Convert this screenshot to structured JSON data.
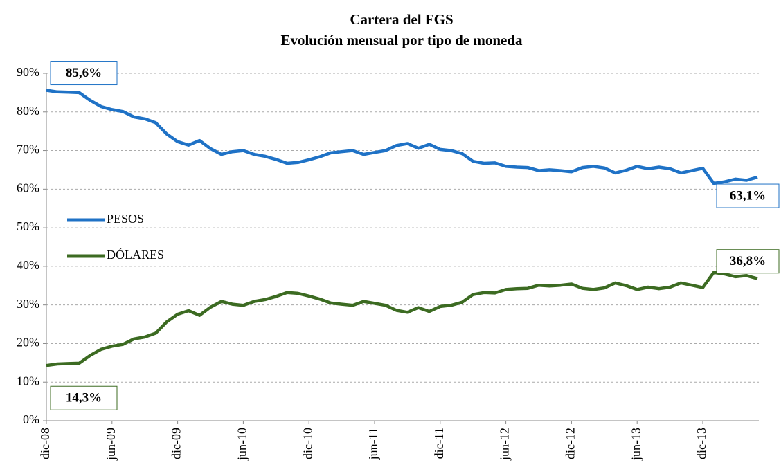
{
  "chart_data": {
    "type": "line",
    "title": "Cartera del FGS",
    "subtitle": "Evolución mensual por tipo de moneda",
    "categories": [
      "dic-08",
      null,
      null,
      null,
      null,
      null,
      "jun-09",
      null,
      null,
      null,
      null,
      null,
      "dic-09",
      null,
      null,
      null,
      null,
      null,
      "jun-10",
      null,
      null,
      null,
      null,
      null,
      "dic-10",
      null,
      null,
      null,
      null,
      null,
      "jun-11",
      null,
      null,
      null,
      null,
      null,
      "dic-11",
      null,
      null,
      null,
      null,
      null,
      "jun-12",
      null,
      null,
      null,
      null,
      null,
      "dic-12",
      null,
      null,
      null,
      null,
      null,
      "jun-13",
      null,
      null,
      null,
      null,
      null,
      "dic-13",
      null,
      null,
      null,
      null,
      null
    ],
    "series": [
      {
        "name": "PESOS",
        "color": "#1f72c6",
        "values": [
          85.6,
          85.2,
          85.1,
          85.0,
          83.0,
          81.4,
          80.6,
          80.1,
          78.7,
          78.2,
          77.2,
          74.3,
          72.3,
          71.4,
          72.6,
          70.5,
          69.0,
          69.7,
          70.0,
          69.0,
          68.5,
          67.7,
          66.7,
          66.9,
          67.6,
          68.4,
          69.4,
          69.7,
          70.0,
          69.0,
          69.5,
          70.0,
          71.3,
          71.8,
          70.6,
          71.6,
          70.3,
          70.0,
          69.2,
          67.2,
          66.7,
          66.8,
          65.9,
          65.7,
          65.6,
          64.8,
          65.0,
          64.8,
          64.5,
          65.6,
          65.9,
          65.5,
          64.2,
          64.9,
          65.9,
          65.3,
          65.7,
          65.3,
          64.2,
          64.8,
          65.4,
          61.5,
          61.9,
          62.6,
          62.3,
          63.1
        ],
        "value_labels": [
          "85,6%",
          null,
          null,
          null,
          null,
          null,
          null,
          null,
          null,
          null,
          null,
          null,
          null,
          null,
          null,
          null,
          null,
          null,
          null,
          null,
          null,
          null,
          null,
          null,
          null,
          null,
          null,
          null,
          null,
          null,
          null,
          null,
          null,
          null,
          null,
          null,
          null,
          null,
          null,
          null,
          null,
          null,
          null,
          null,
          null,
          null,
          null,
          null,
          null,
          null,
          null,
          null,
          null,
          null,
          null,
          null,
          null,
          null,
          null,
          null,
          null,
          null,
          null,
          null,
          null,
          "63,1%"
        ]
      },
      {
        "name": "DÓLARES",
        "color": "#3c6b22",
        "values": [
          14.3,
          14.7,
          14.8,
          14.9,
          16.9,
          18.5,
          19.3,
          19.8,
          21.2,
          21.7,
          22.7,
          25.6,
          27.6,
          28.5,
          27.3,
          29.4,
          30.9,
          30.2,
          29.9,
          30.9,
          31.4,
          32.2,
          33.2,
          33.0,
          32.3,
          31.5,
          30.5,
          30.2,
          29.9,
          30.9,
          30.4,
          29.9,
          28.6,
          28.1,
          29.3,
          28.3,
          29.6,
          29.9,
          30.7,
          32.7,
          33.2,
          33.1,
          34.0,
          34.2,
          34.3,
          35.1,
          34.9,
          35.1,
          35.4,
          34.3,
          34.0,
          34.4,
          35.7,
          35.0,
          34.0,
          34.6,
          34.2,
          34.6,
          35.7,
          35.1,
          34.5,
          38.4,
          38.0,
          37.3,
          37.6,
          36.8
        ],
        "value_labels": [
          "14,3%",
          null,
          null,
          null,
          null,
          null,
          null,
          null,
          null,
          null,
          null,
          null,
          null,
          null,
          null,
          null,
          null,
          null,
          null,
          null,
          null,
          null,
          null,
          null,
          null,
          null,
          null,
          null,
          null,
          null,
          null,
          null,
          null,
          null,
          null,
          null,
          null,
          null,
          null,
          null,
          null,
          null,
          null,
          null,
          null,
          null,
          null,
          null,
          null,
          null,
          null,
          null,
          null,
          null,
          null,
          null,
          null,
          null,
          null,
          null,
          null,
          null,
          null,
          null,
          null,
          "36,8%"
        ]
      }
    ],
    "ylim": [
      0,
      90
    ],
    "yticks": [
      {
        "value": 0,
        "label": "0%"
      },
      {
        "value": 10,
        "label": "10%"
      },
      {
        "value": 20,
        "label": "20%"
      },
      {
        "value": 30,
        "label": "30%"
      },
      {
        "value": 40,
        "label": "40%"
      },
      {
        "value": 50,
        "label": "50%"
      },
      {
        "value": 60,
        "label": "60%"
      },
      {
        "value": 70,
        "label": "70%"
      },
      {
        "value": 80,
        "label": "80%"
      },
      {
        "value": 90,
        "label": "90%"
      }
    ],
    "grid": true,
    "legend": "left"
  }
}
